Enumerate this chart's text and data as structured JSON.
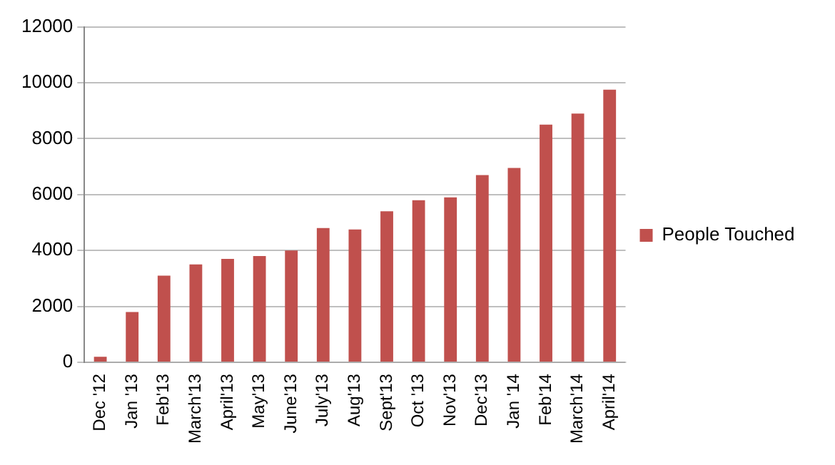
{
  "chart_data": {
    "type": "bar",
    "categories": [
      "Dec '12",
      "Jan '13",
      "Feb'13",
      "March'13",
      "April'13",
      "May'13",
      "June'13",
      "July'13",
      "Aug'13",
      "Sept'13",
      "Oct '13",
      "Nov'13",
      "Dec'13",
      "Jan '14",
      "Feb'14",
      "March'14",
      "April'14"
    ],
    "series": [
      {
        "name": "People Touched",
        "color": "#c0504d",
        "values": [
          200,
          1800,
          3100,
          3500,
          3700,
          3800,
          4000,
          4800,
          4750,
          5400,
          5800,
          5900,
          6700,
          6950,
          8500,
          8900,
          9750
        ]
      }
    ],
    "ylim": [
      0,
      12000
    ],
    "yticks": [
      0,
      2000,
      4000,
      6000,
      8000,
      10000,
      12000
    ],
    "grid": "y",
    "legend": "right"
  }
}
